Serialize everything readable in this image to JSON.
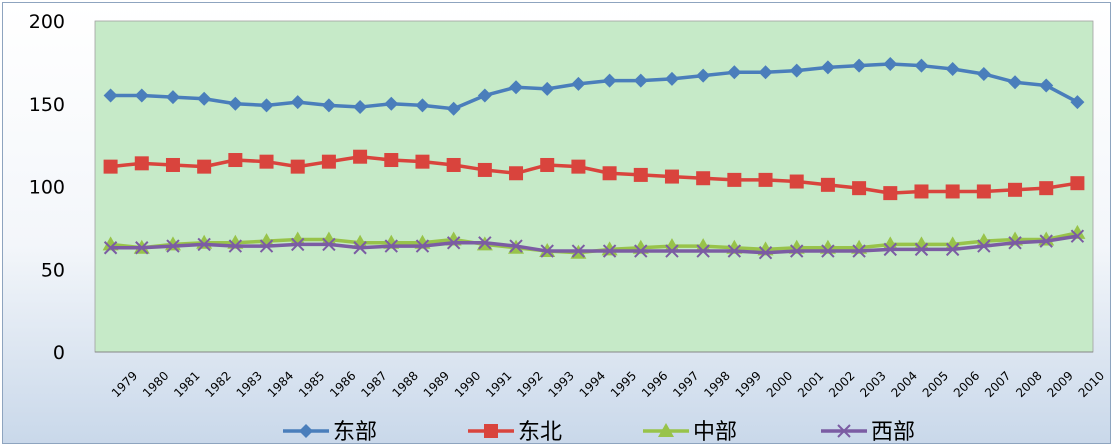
{
  "chart_data": {
    "type": "line",
    "x": [
      "1979",
      "1980",
      "1981",
      "1982",
      "1983",
      "1984",
      "1985",
      "1986",
      "1987",
      "1988",
      "1989",
      "1990",
      "1991",
      "1992",
      "1993",
      "1994",
      "1995",
      "1996",
      "1997",
      "1998",
      "1999",
      "2000",
      "2001",
      "2002",
      "2003",
      "2004",
      "2005",
      "2006",
      "2007",
      "2008",
      "2009",
      "2010"
    ],
    "ylim": [
      0,
      200
    ],
    "yticks": [
      "0",
      "50",
      "100",
      "150",
      "200"
    ],
    "grid": false,
    "legend_position": "bottom",
    "plot_background": "#c6eac8",
    "series": [
      {
        "name": "东部",
        "color": "#4a7ebb",
        "marker": "diamond",
        "values": [
          155,
          155,
          154,
          153,
          150,
          149,
          151,
          149,
          148,
          150,
          149,
          147,
          155,
          160,
          159,
          162,
          164,
          164,
          165,
          167,
          169,
          169,
          170,
          172,
          173,
          174,
          173,
          171,
          168,
          163,
          161,
          151
        ]
      },
      {
        "name": "东北",
        "color": "#d9443d",
        "marker": "square",
        "values": [
          112,
          114,
          113,
          112,
          116,
          115,
          112,
          115,
          118,
          116,
          115,
          113,
          110,
          108,
          113,
          112,
          108,
          107,
          106,
          105,
          104,
          104,
          103,
          101,
          99,
          96,
          97,
          97,
          97,
          98,
          99,
          102
        ]
      },
      {
        "name": "中部",
        "color": "#98c34a",
        "marker": "triangle",
        "values": [
          65,
          63,
          65,
          66,
          66,
          67,
          68,
          68,
          66,
          66,
          66,
          68,
          65,
          63,
          61,
          60,
          62,
          63,
          64,
          64,
          63,
          62,
          63,
          63,
          63,
          65,
          65,
          65,
          67,
          68,
          68,
          72
        ]
      },
      {
        "name": "西部",
        "color": "#7b5ca3",
        "marker": "x",
        "values": [
          63,
          63,
          64,
          65,
          64,
          64,
          65,
          65,
          63,
          64,
          64,
          66,
          66,
          64,
          61,
          61,
          61,
          61,
          61,
          61,
          61,
          60,
          61,
          61,
          61,
          62,
          62,
          62,
          64,
          66,
          67,
          70
        ]
      }
    ]
  }
}
